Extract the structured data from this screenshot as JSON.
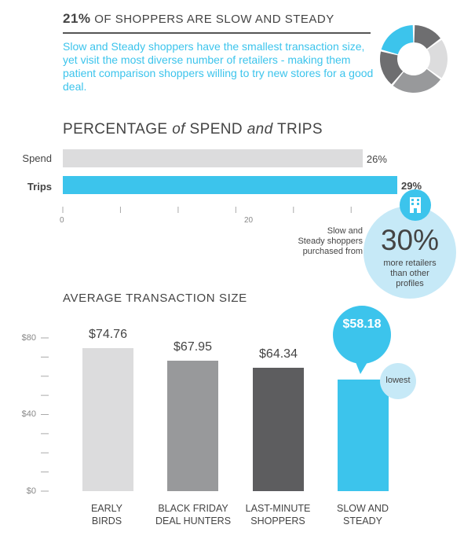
{
  "headline": {
    "percent": "21%",
    "text": "OF SHOPPERS ARE SLOW AND STEADY"
  },
  "description": "Slow and Steady shoppers have the smallest transaction size, yet visit the most diverse number of retailers - making them patient comparison shoppers willing to try new stores for a good deal.",
  "donut": {
    "segments": [
      {
        "value": 21,
        "color": "#3cc4ec"
      },
      {
        "value": 15,
        "color": "#6e6e70"
      },
      {
        "value": 20,
        "color": "#dcdcdd"
      },
      {
        "value": 26,
        "color": "#98999b"
      },
      {
        "value": 18,
        "color": "#6e6e70"
      }
    ]
  },
  "spend_section": {
    "t1": "PERCENTAGE",
    "t2": "of",
    "t3": "SPEND",
    "t4": "and",
    "t5": "TRIPS"
  },
  "avg_section": {
    "title": "AVERAGE TRANSACTION SIZE"
  },
  "callout": {
    "left_text_1": "Slow and",
    "left_text_2": "Steady shoppers",
    "left_text_3": "purchased from",
    "big": "30%",
    "sub_1": "more retailers",
    "sub_2": "than other",
    "sub_3": "profiles"
  },
  "lowest_label": "lowest",
  "colors": {
    "accent": "#3cc4ec",
    "light_accent": "#c6e9f7",
    "light_gray": "#dcdcdd",
    "mid_gray": "#98999b",
    "dark_gray": "#5d5d5f"
  },
  "chart_data": [
    {
      "type": "bar",
      "orientation": "horizontal",
      "title": "PERCENTAGE of SPEND and TRIPS",
      "categories": [
        "Spend",
        "Trips"
      ],
      "values": [
        26,
        29
      ],
      "value_labels": [
        "26%",
        "29%"
      ],
      "bar_colors": [
        "#dcdcdd",
        "#3cc4ec"
      ],
      "xlim": [
        0,
        30
      ],
      "x_tick_labels": [
        "0",
        "20"
      ],
      "grid": false
    },
    {
      "type": "bar",
      "title": "AVERAGE TRANSACTION SIZE",
      "categories": [
        "EARLY BIRDS",
        "BLACK FRIDAY DEAL HUNTERS",
        "LAST-MINUTE SHOPPERS",
        "SLOW AND STEADY"
      ],
      "category_lines": [
        [
          "EARLY",
          "BIRDS"
        ],
        [
          "BLACK FRIDAY",
          "DEAL HUNTERS"
        ],
        [
          "LAST-MINUTE",
          "SHOPPERS"
        ],
        [
          "SLOW AND",
          "STEADY"
        ]
      ],
      "values": [
        74.76,
        67.95,
        64.34,
        58.18
      ],
      "value_labels": [
        "$74.76",
        "$67.95",
        "$64.34",
        "$58.18"
      ],
      "bar_colors": [
        "#dcdcdd",
        "#98999b",
        "#5d5d5f",
        "#3cc4ec"
      ],
      "ylim": [
        0,
        80
      ],
      "y_tick_labels": [
        "$0",
        "$40",
        "$80"
      ],
      "grid": false
    }
  ]
}
